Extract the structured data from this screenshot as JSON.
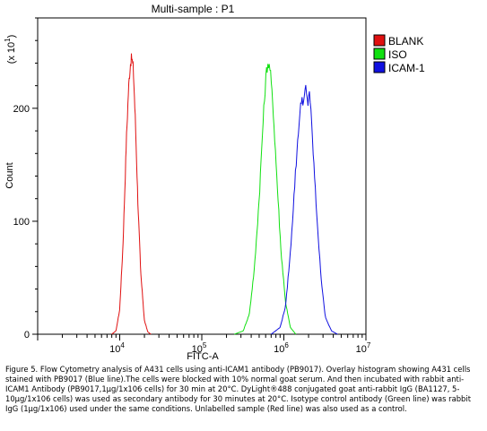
{
  "figure": {
    "caption": "Figure 5. Flow Cytometry analysis of A431 cells using anti-ICAM1 antibody (PB9017).  Overlay histogram showing A431 cells stained with PB9017 (Blue line).The cells were blocked with 10% normal goat serum.  And then incubated with rabbit anti-ICAM1 Antibody (PB9017,1µg/1x106 cells) for 30 min at 20°C. DyLight®488 conjugated goat anti-rabbit IgG (BA1127, 5-10µg/1x106 cells) was used as secondary antibody for 30 minutes at 20°C.  Isotype control antibody (Green line) was rabbit IgG (1µg/1x106) used under the same conditions. Unlabelled sample (Red line) was also used as a control."
  },
  "chart_data": {
    "type": "line",
    "title": "Multi-sample : P1",
    "xlabel": "FITC-A",
    "ylabel": "Count",
    "y_multiplier_label": "(x 10",
    "y_multiplier_exp": "1",
    "y_multiplier_close": ")",
    "x_scale": "log",
    "xlim": [
      1000,
      10000000
    ],
    "ylim": [
      0,
      280
    ],
    "x_ticks": [
      {
        "value": 10000,
        "base": "10",
        "exp": "4"
      },
      {
        "value": 100000,
        "base": "10",
        "exp": "5"
      },
      {
        "value": 1000000,
        "base": "10",
        "exp": "6"
      },
      {
        "value": 10000000,
        "base": "10",
        "exp": "7"
      }
    ],
    "y_ticks": [
      {
        "value": 0,
        "label": "0"
      },
      {
        "value": 100,
        "label": "100"
      },
      {
        "value": 200,
        "label": "200"
      }
    ],
    "legend_position": "right",
    "series": [
      {
        "name": "BLANK",
        "color": "#e01010",
        "peak_x": 14000,
        "peak_y": 245,
        "width_decades": 0.075,
        "points": [
          [
            8000,
            0
          ],
          [
            9000,
            3
          ],
          [
            10000,
            22
          ],
          [
            11000,
            82
          ],
          [
            12000,
            168
          ],
          [
            12800,
            218
          ],
          [
            13500,
            240
          ],
          [
            14000,
            245
          ],
          [
            14600,
            236
          ],
          [
            15500,
            190
          ],
          [
            16500,
            125
          ],
          [
            18000,
            55
          ],
          [
            20000,
            12
          ],
          [
            22000,
            2
          ],
          [
            24000,
            0
          ]
        ]
      },
      {
        "name": "ISO",
        "color": "#10e010",
        "peak_x": 640000,
        "peak_y": 240,
        "width_decades": 0.11,
        "points": [
          [
            250000,
            0
          ],
          [
            320000,
            3
          ],
          [
            380000,
            18
          ],
          [
            440000,
            60
          ],
          [
            500000,
            120
          ],
          [
            560000,
            190
          ],
          [
            610000,
            232
          ],
          [
            640000,
            240
          ],
          [
            680000,
            235
          ],
          [
            740000,
            200
          ],
          [
            820000,
            140
          ],
          [
            920000,
            75
          ],
          [
            1050000,
            28
          ],
          [
            1200000,
            6
          ],
          [
            1400000,
            0
          ]
        ]
      },
      {
        "name": "ICAM-1",
        "color": "#1010e0",
        "peak_x": 1850000,
        "peak_y": 218,
        "width_decades": 0.12,
        "points": [
          [
            700000,
            0
          ],
          [
            900000,
            6
          ],
          [
            1050000,
            25
          ],
          [
            1200000,
            72
          ],
          [
            1350000,
            130
          ],
          [
            1500000,
            180
          ],
          [
            1650000,
            210
          ],
          [
            1750000,
            205
          ],
          [
            1850000,
            218
          ],
          [
            1950000,
            202
          ],
          [
            2050000,
            217
          ],
          [
            2200000,
            180
          ],
          [
            2450000,
            120
          ],
          [
            2800000,
            55
          ],
          [
            3200000,
            15
          ],
          [
            3800000,
            3
          ],
          [
            4500000,
            0
          ]
        ]
      }
    ]
  }
}
